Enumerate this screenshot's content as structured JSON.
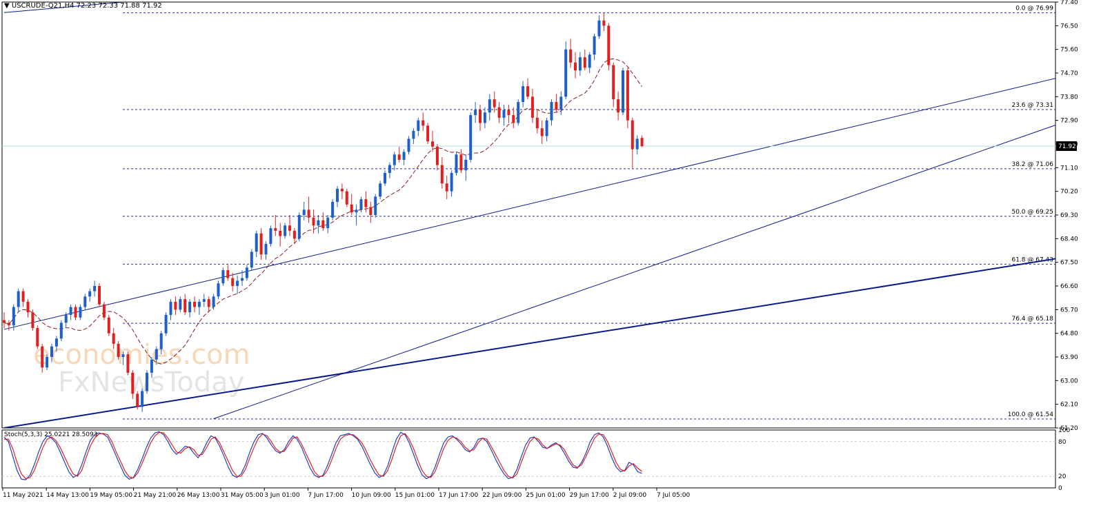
{
  "header": {
    "symbol_label": "USCRUDE-Q21,H4",
    "ohlc": "72.23 72.33 71.88 71.92"
  },
  "stoch_label": "Stoch(5,3,3) 25.0221 28.5093",
  "watermark": {
    "line1": "economies.com",
    "line2": "FxNewsToday"
  },
  "colors": {
    "bull": "#1f5fc9",
    "bear": "#e02020",
    "channel": "#0a1a8c",
    "fib": "#2b2b8f",
    "ma": "#8b1a1a",
    "stoch_main": "#1f3fbf",
    "stoch_signal": "#e02020",
    "grid": "#c9c9c9",
    "price_line": "#b9dbe4"
  },
  "chart_data": [
    {
      "type": "candlestick",
      "instrument": "USCRUDE-Q21",
      "timeframe": "H4",
      "current_price": "71.92",
      "ylim": [
        61.2,
        77.4
      ],
      "y_ticks": [
        "77.40",
        "76.50",
        "75.60",
        "74.70",
        "73.80",
        "72.90",
        "72.00",
        "71.10",
        "70.20",
        "69.30",
        "68.40",
        "67.50",
        "66.60",
        "65.70",
        "64.80",
        "63.90",
        "63.00",
        "62.10",
        "61.20"
      ],
      "x_ticks": [
        "11 May 2021",
        "14 May 13:00",
        "19 May 05:00",
        "21 May 21:00",
        "26 May 13:00",
        "31 May 05:00",
        "3 Jun 01:00",
        "7 Jun 17:00",
        "10 Jun 09:00",
        "15 Jun 01:00",
        "17 Jun 17:00",
        "22 Jun 09:00",
        "25 Jun 01:00",
        "29 Jun 17:00",
        "2 Jul 09:00",
        "7 Jul 05:00"
      ],
      "fibonacci": [
        {
          "label": "0.0 @ 76.99",
          "level": 76.99
        },
        {
          "label": "23.6 @ 73.31",
          "level": 73.31
        },
        {
          "label": "38.2 @ 71.06",
          "level": 71.06
        },
        {
          "label": "50.0 @ 69.25",
          "level": 69.25
        },
        {
          "label": "61.8 @ 67.43",
          "level": 67.43
        },
        {
          "label": "76.4 @ 65.18",
          "level": 65.18
        },
        {
          "label": "100.0 @ 61.54",
          "level": 61.54
        }
      ],
      "trendlines": [
        {
          "name": "channel-upper",
          "from": [
            0,
            64.95
          ],
          "to": [
            288,
            77.4
          ]
        },
        {
          "name": "channel-lower",
          "from": [
            44,
            61.55
          ],
          "to": [
            295,
            77.4
          ]
        },
        {
          "name": "support",
          "from": [
            0,
            61.2
          ],
          "to": [
            422,
            73.5
          ]
        },
        {
          "name": "support-top-left",
          "from": [
            0,
            77.0
          ],
          "to": [
            25,
            77.4
          ]
        }
      ],
      "candles": [
        [
          65.3,
          65.6,
          65.0,
          65.2
        ],
        [
          65.2,
          65.3,
          64.9,
          65.1
        ],
        [
          65.1,
          65.9,
          64.9,
          65.8
        ],
        [
          65.8,
          66.5,
          65.6,
          66.4
        ],
        [
          66.4,
          66.5,
          65.8,
          66.0
        ],
        [
          66.0,
          66.1,
          65.4,
          65.6
        ],
        [
          65.6,
          65.7,
          64.9,
          65.0
        ],
        [
          65.0,
          65.1,
          64.2,
          64.3
        ],
        [
          64.3,
          64.4,
          63.3,
          63.5
        ],
        [
          63.5,
          64.0,
          63.4,
          63.9
        ],
        [
          63.9,
          64.4,
          63.7,
          64.3
        ],
        [
          64.3,
          64.7,
          64.1,
          64.6
        ],
        [
          64.6,
          65.3,
          64.5,
          65.2
        ],
        [
          65.2,
          65.6,
          65.0,
          65.5
        ],
        [
          65.5,
          65.9,
          65.3,
          65.8
        ],
        [
          65.8,
          65.9,
          65.3,
          65.4
        ],
        [
          65.4,
          65.9,
          65.3,
          65.8
        ],
        [
          65.8,
          66.3,
          65.7,
          66.2
        ],
        [
          66.2,
          66.5,
          66.0,
          66.4
        ],
        [
          66.4,
          66.8,
          66.2,
          66.6
        ],
        [
          66.6,
          66.7,
          65.8,
          65.9
        ],
        [
          65.9,
          66.0,
          65.3,
          65.4
        ],
        [
          65.4,
          65.5,
          64.7,
          64.8
        ],
        [
          64.8,
          65.0,
          64.2,
          64.4
        ],
        [
          64.4,
          64.5,
          63.8,
          63.9
        ],
        [
          63.9,
          64.1,
          63.6,
          64.0
        ],
        [
          64.0,
          64.1,
          63.2,
          63.3
        ],
        [
          63.3,
          63.4,
          62.3,
          62.5
        ],
        [
          62.5,
          62.6,
          61.9,
          62.0
        ],
        [
          62.0,
          62.7,
          61.8,
          62.6
        ],
        [
          62.6,
          63.4,
          62.5,
          63.3
        ],
        [
          63.3,
          63.9,
          63.1,
          63.8
        ],
        [
          63.8,
          64.3,
          63.6,
          64.2
        ],
        [
          64.2,
          64.9,
          64.0,
          64.8
        ],
        [
          64.8,
          65.6,
          64.7,
          65.5
        ],
        [
          65.5,
          66.1,
          65.3,
          66.0
        ],
        [
          66.0,
          66.2,
          65.5,
          65.7
        ],
        [
          65.7,
          66.2,
          65.6,
          66.1
        ],
        [
          66.1,
          66.3,
          65.5,
          65.6
        ],
        [
          65.6,
          66.1,
          65.4,
          66.0
        ],
        [
          66.0,
          66.2,
          65.6,
          65.8
        ],
        [
          65.8,
          66.1,
          65.5,
          66.0
        ],
        [
          66.0,
          66.3,
          65.8,
          66.1
        ],
        [
          66.1,
          66.2,
          65.6,
          65.8
        ],
        [
          65.8,
          66.3,
          65.7,
          66.2
        ],
        [
          66.2,
          66.8,
          66.1,
          66.7
        ],
        [
          66.7,
          67.3,
          66.6,
          67.2
        ],
        [
          67.2,
          67.4,
          66.8,
          66.9
        ],
        [
          66.9,
          67.1,
          66.4,
          66.6
        ],
        [
          66.6,
          67.0,
          66.3,
          66.8
        ],
        [
          66.8,
          67.2,
          66.6,
          66.9
        ],
        [
          66.9,
          67.4,
          66.8,
          67.3
        ],
        [
          67.3,
          68.0,
          67.2,
          67.9
        ],
        [
          67.9,
          68.7,
          67.7,
          68.6
        ],
        [
          68.6,
          68.8,
          67.6,
          67.8
        ],
        [
          67.8,
          68.3,
          67.6,
          68.2
        ],
        [
          68.2,
          68.9,
          68.1,
          68.8
        ],
        [
          68.8,
          69.3,
          68.5,
          68.7
        ],
        [
          68.7,
          69.0,
          68.1,
          68.5
        ],
        [
          68.5,
          69.0,
          68.4,
          68.9
        ],
        [
          68.9,
          69.3,
          68.5,
          68.7
        ],
        [
          68.7,
          68.8,
          68.2,
          68.4
        ],
        [
          68.4,
          69.4,
          68.3,
          69.3
        ],
        [
          69.3,
          69.8,
          69.1,
          69.5
        ],
        [
          69.5,
          70.0,
          69.0,
          69.2
        ],
        [
          69.2,
          69.5,
          68.6,
          68.9
        ],
        [
          68.9,
          69.3,
          68.6,
          69.1
        ],
        [
          69.1,
          69.4,
          68.7,
          68.8
        ],
        [
          68.8,
          69.3,
          68.6,
          69.2
        ],
        [
          69.2,
          69.9,
          69.1,
          69.8
        ],
        [
          69.8,
          70.4,
          69.6,
          70.3
        ],
        [
          70.3,
          70.5,
          69.9,
          70.2
        ],
        [
          70.2,
          70.3,
          69.6,
          69.7
        ],
        [
          69.7,
          70.1,
          69.3,
          69.4
        ],
        [
          69.4,
          69.7,
          68.9,
          69.5
        ],
        [
          69.5,
          70.0,
          69.4,
          69.9
        ],
        [
          69.9,
          70.2,
          69.4,
          69.6
        ],
        [
          69.6,
          69.8,
          69.0,
          69.3
        ],
        [
          69.3,
          70.1,
          69.2,
          70.0
        ],
        [
          70.0,
          70.6,
          69.9,
          70.5
        ],
        [
          70.5,
          71.0,
          70.4,
          70.9
        ],
        [
          70.9,
          71.3,
          70.7,
          71.2
        ],
        [
          71.2,
          71.7,
          71.0,
          71.6
        ],
        [
          71.6,
          71.9,
          71.3,
          71.4
        ],
        [
          71.4,
          71.8,
          71.2,
          71.7
        ],
        [
          71.7,
          72.3,
          71.6,
          72.2
        ],
        [
          72.2,
          72.6,
          72.0,
          72.5
        ],
        [
          72.5,
          73.0,
          72.3,
          72.9
        ],
        [
          72.9,
          73.2,
          72.5,
          72.7
        ],
        [
          72.7,
          72.8,
          72.0,
          72.1
        ],
        [
          72.1,
          72.5,
          71.7,
          71.9
        ],
        [
          71.9,
          72.0,
          71.0,
          71.2
        ],
        [
          71.2,
          71.5,
          70.3,
          70.5
        ],
        [
          70.5,
          70.8,
          69.9,
          70.2
        ],
        [
          70.2,
          71.0,
          70.0,
          70.9
        ],
        [
          70.9,
          71.7,
          70.8,
          71.6
        ],
        [
          71.6,
          71.8,
          70.9,
          71.0
        ],
        [
          71.0,
          71.6,
          70.6,
          71.4
        ],
        [
          71.4,
          73.2,
          71.3,
          73.1
        ],
        [
          73.1,
          73.6,
          72.8,
          73.3
        ],
        [
          73.3,
          73.5,
          72.5,
          72.8
        ],
        [
          72.8,
          73.4,
          72.6,
          73.2
        ],
        [
          73.2,
          73.9,
          72.9,
          73.7
        ],
        [
          73.7,
          74.0,
          73.2,
          73.4
        ],
        [
          73.4,
          73.6,
          72.8,
          73.0
        ],
        [
          73.0,
          73.5,
          72.7,
          73.3
        ],
        [
          73.3,
          73.5,
          72.8,
          73.1
        ],
        [
          73.1,
          73.4,
          72.6,
          72.8
        ],
        [
          72.8,
          73.7,
          72.7,
          73.6
        ],
        [
          73.6,
          74.4,
          73.4,
          74.2
        ],
        [
          74.2,
          74.5,
          73.7,
          73.8
        ],
        [
          73.8,
          74.1,
          72.8,
          73.0
        ],
        [
          73.0,
          73.3,
          72.4,
          72.6
        ],
        [
          72.6,
          72.9,
          72.0,
          72.3
        ],
        [
          72.3,
          73.0,
          72.1,
          72.9
        ],
        [
          72.9,
          73.7,
          72.7,
          73.6
        ],
        [
          73.6,
          73.9,
          73.2,
          73.3
        ],
        [
          73.3,
          74.0,
          73.1,
          73.8
        ],
        [
          73.8,
          75.9,
          73.7,
          75.6
        ],
        [
          75.6,
          76.0,
          74.9,
          75.1
        ],
        [
          75.1,
          75.5,
          74.5,
          74.8
        ],
        [
          74.8,
          75.5,
          74.6,
          75.3
        ],
        [
          75.3,
          75.6,
          74.8,
          74.9
        ],
        [
          74.9,
          75.5,
          74.7,
          75.4
        ],
        [
          75.4,
          76.2,
          75.2,
          76.1
        ],
        [
          76.1,
          76.9,
          76.0,
          76.7
        ],
        [
          76.7,
          76.99,
          76.3,
          76.5
        ],
        [
          76.5,
          76.6,
          74.8,
          75.0
        ],
        [
          75.0,
          75.1,
          73.4,
          73.7
        ],
        [
          73.7,
          74.0,
          72.9,
          73.2
        ],
        [
          73.2,
          74.9,
          73.1,
          74.8
        ],
        [
          74.8,
          74.9,
          72.6,
          72.9
        ],
        [
          72.9,
          73.0,
          71.06,
          71.8
        ],
        [
          71.8,
          72.33,
          71.6,
          72.2
        ],
        [
          72.23,
          72.33,
          71.88,
          71.92
        ]
      ]
    },
    {
      "type": "line",
      "title": "Stoch(5,3,3) 25.0221 28.5093",
      "ylim": [
        0,
        100
      ],
      "y_ticks": [
        "100",
        "80",
        "20",
        "0"
      ],
      "series": [
        {
          "values": [
            88,
            80,
            55,
            30,
            15,
            14,
            22,
            40,
            62,
            80,
            90,
            86,
            78,
            62,
            45,
            28,
            18,
            22,
            40,
            62,
            82,
            92,
            95,
            93,
            88,
            72,
            55,
            38,
            22,
            15,
            18,
            32,
            50,
            70,
            86,
            95,
            97,
            92,
            80,
            66,
            58,
            64,
            72,
            70,
            60,
            52,
            62,
            78,
            90,
            86,
            72,
            55,
            36,
            22,
            18,
            24,
            40,
            62,
            80,
            92,
            94,
            86,
            74,
            64,
            60,
            66,
            80,
            90,
            84,
            70,
            52,
            34,
            22,
            18,
            22,
            38,
            58,
            78,
            90,
            92,
            94,
            90,
            84,
            72,
            56,
            40,
            26,
            18,
            22,
            38,
            62,
            84,
            96,
            92,
            78,
            58,
            38,
            22,
            16,
            20,
            36,
            58,
            78,
            88,
            90,
            84,
            76,
            66,
            62,
            70,
            84,
            86,
            80,
            66,
            50,
            36,
            24,
            16,
            18,
            32,
            54,
            74,
            86,
            88,
            80,
            70,
            68,
            74,
            78,
            72,
            60,
            46,
            36,
            34,
            44,
            60,
            80,
            92,
            95,
            88,
            72,
            52,
            36,
            28,
            30,
            44,
            40,
            28,
            25
          ]
        },
        {
          "values": [
            84,
            84,
            68,
            44,
            24,
            16,
            18,
            30,
            50,
            70,
            84,
            88,
            82,
            70,
            54,
            38,
            24,
            20,
            30,
            52,
            72,
            86,
            93,
            94,
            92,
            80,
            62,
            46,
            30,
            19,
            17,
            26,
            42,
            60,
            78,
            90,
            96,
            95,
            86,
            74,
            62,
            60,
            68,
            71,
            66,
            56,
            58,
            70,
            84,
            88,
            78,
            62,
            46,
            30,
            20,
            20,
            32,
            52,
            70,
            86,
            93,
            90,
            80,
            68,
            62,
            63,
            74,
            86,
            88,
            76,
            60,
            44,
            28,
            20,
            20,
            30,
            48,
            68,
            84,
            90,
            92,
            92,
            86,
            78,
            64,
            48,
            34,
            22,
            20,
            30,
            50,
            72,
            90,
            94,
            84,
            68,
            48,
            30,
            20,
            18,
            28,
            48,
            68,
            82,
            88,
            86,
            80,
            70,
            64,
            66,
            78,
            86,
            84,
            72,
            58,
            44,
            30,
            20,
            17,
            24,
            44,
            64,
            80,
            87,
            84,
            74,
            68,
            72,
            76,
            74,
            66,
            52,
            40,
            35,
            40,
            54,
            70,
            86,
            93,
            92,
            80,
            62,
            44,
            32,
            29,
            38,
            42,
            34,
            28.5
          ]
        }
      ]
    }
  ]
}
